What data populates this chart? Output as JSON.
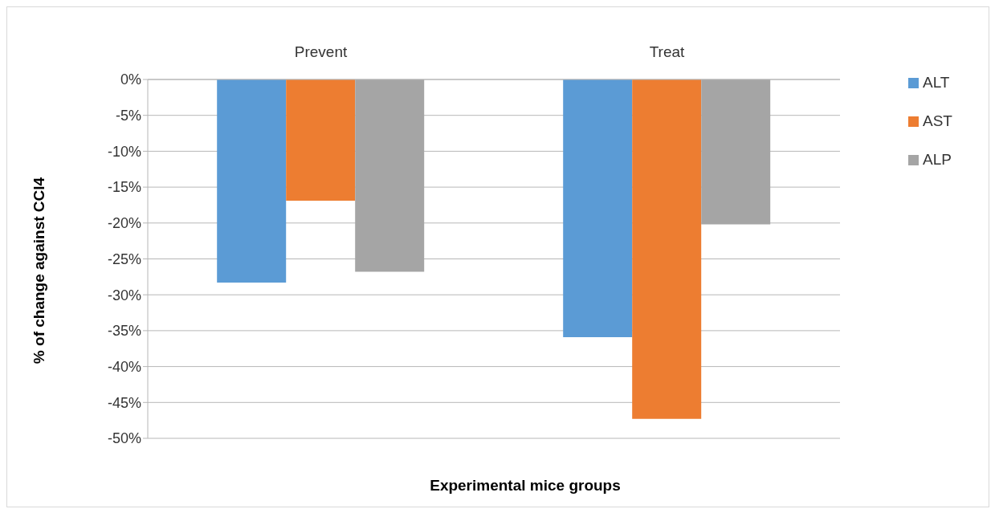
{
  "chart_data": {
    "type": "bar",
    "xlabel": "Experimental mice groups",
    "ylabel": "% of change against CCl4",
    "categories": [
      "Prevent",
      "Treat"
    ],
    "series": [
      {
        "name": "ALT",
        "color": "#5b9bd5",
        "values": [
          -28.3,
          -35.9
        ]
      },
      {
        "name": "AST",
        "color": "#ed7d31",
        "values": [
          -16.9,
          -47.3
        ]
      },
      {
        "name": "ALP",
        "color": "#a5a5a5",
        "values": [
          -26.8,
          -20.2
        ]
      }
    ],
    "ylim": [
      -50,
      0
    ],
    "yticks": [
      {
        "value": 0,
        "label": "0%"
      },
      {
        "value": -5,
        "label": "-5%"
      },
      {
        "value": -10,
        "label": "-10%"
      },
      {
        "value": -15,
        "label": "-15%"
      },
      {
        "value": -20,
        "label": "-20%"
      },
      {
        "value": -25,
        "label": "-25%"
      },
      {
        "value": -30,
        "label": "-30%"
      },
      {
        "value": -35,
        "label": "-35%"
      },
      {
        "value": -40,
        "label": "-40%"
      },
      {
        "value": -45,
        "label": "-45%"
      },
      {
        "value": -50,
        "label": "-50%"
      }
    ],
    "grid": "y",
    "legend": "right"
  }
}
